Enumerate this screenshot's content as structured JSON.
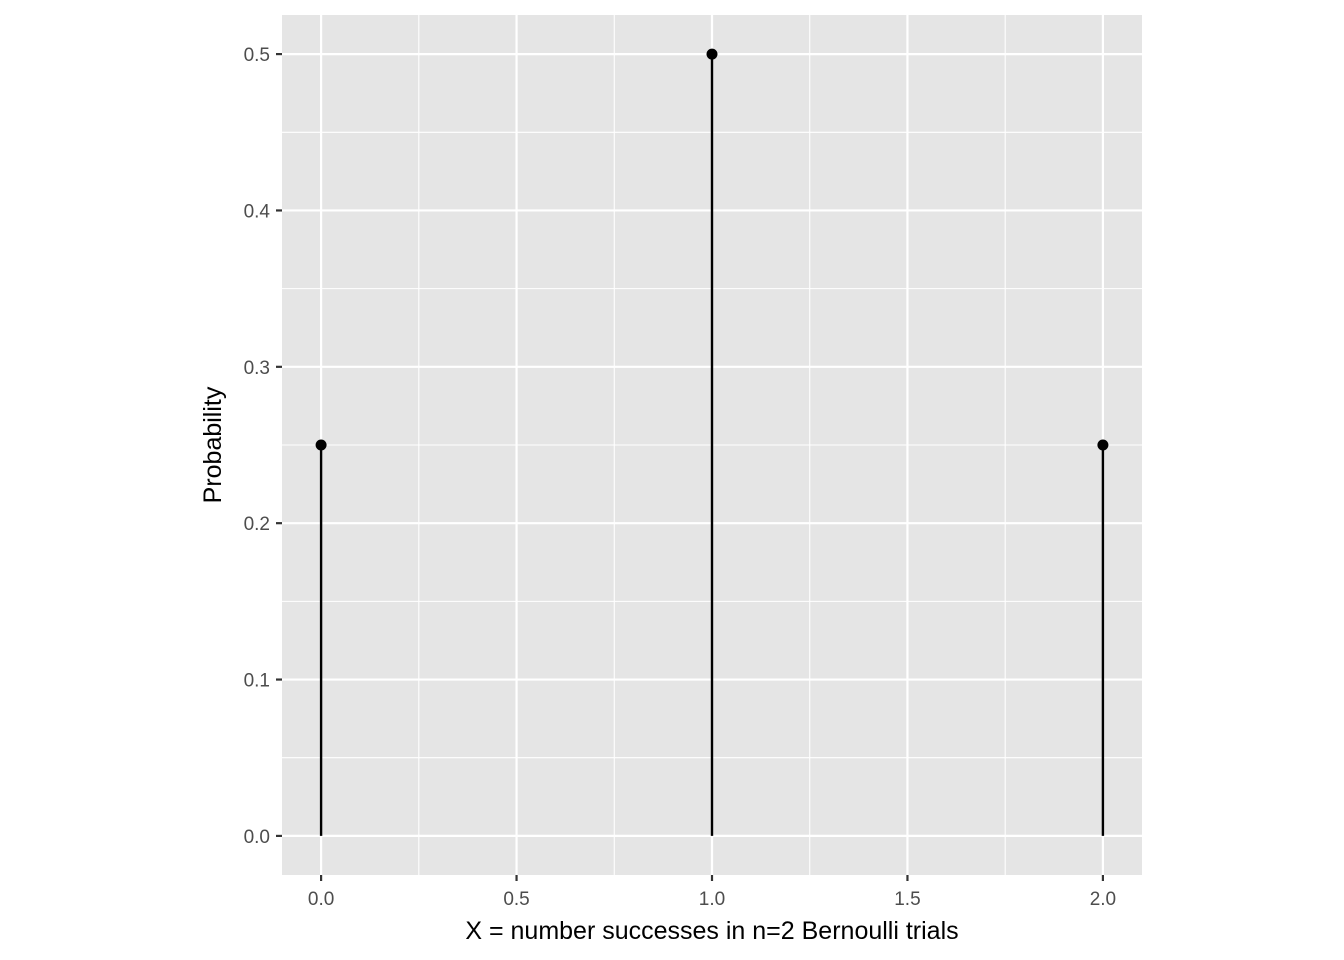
{
  "chart_data": {
    "type": "stem",
    "x": [
      0,
      1,
      2
    ],
    "y": [
      0.25,
      0.5,
      0.25
    ],
    "xlabel": "X = number successes in n=2 Bernoulli trials",
    "ylabel": "Probability",
    "xlim": [
      -0.1,
      2.1
    ],
    "ylim": [
      -0.025,
      0.525
    ],
    "x_ticks": [
      0.0,
      0.5,
      1.0,
      1.5,
      2.0
    ],
    "x_tick_labels": [
      "0.0",
      "0.5",
      "1.0",
      "1.5",
      "2.0"
    ],
    "y_ticks": [
      0.0,
      0.1,
      0.2,
      0.3,
      0.4,
      0.5
    ],
    "y_tick_labels": [
      "0.0",
      "0.1",
      "0.2",
      "0.3",
      "0.4",
      "0.5"
    ],
    "x_minor_ticks": [
      0.25,
      0.75,
      1.25,
      1.75
    ],
    "y_minor_ticks": [
      0.05,
      0.15,
      0.25,
      0.35,
      0.45
    ],
    "grid": true,
    "legend": "none",
    "colors": {
      "panel_background": "#e5e5e5",
      "grid": "#ffffff",
      "series": "#000000",
      "tick_text": "#4d4d4d",
      "axis_title": "#000000"
    }
  }
}
